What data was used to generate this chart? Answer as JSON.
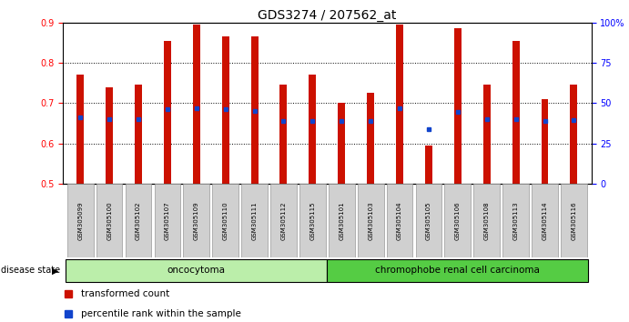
{
  "title": "GDS3274 / 207562_at",
  "samples": [
    "GSM305099",
    "GSM305100",
    "GSM305102",
    "GSM305107",
    "GSM305109",
    "GSM305110",
    "GSM305111",
    "GSM305112",
    "GSM305115",
    "GSM305101",
    "GSM305103",
    "GSM305104",
    "GSM305105",
    "GSM305106",
    "GSM305108",
    "GSM305113",
    "GSM305114",
    "GSM305116"
  ],
  "bar_heights": [
    0.77,
    0.74,
    0.745,
    0.855,
    0.895,
    0.865,
    0.865,
    0.745,
    0.77,
    0.7,
    0.725,
    0.895,
    0.595,
    0.885,
    0.745,
    0.855,
    0.71,
    0.745
  ],
  "blue_values": [
    0.665,
    0.66,
    0.66,
    0.685,
    0.688,
    0.685,
    0.68,
    0.655,
    0.655,
    0.655,
    0.655,
    0.688,
    0.635,
    0.678,
    0.66,
    0.66,
    0.655,
    0.658
  ],
  "bar_color": "#cc1100",
  "blue_color": "#1144cc",
  "ylim_left": [
    0.5,
    0.9
  ],
  "ylim_right": [
    0,
    100
  ],
  "yticks_left": [
    0.5,
    0.6,
    0.7,
    0.8,
    0.9
  ],
  "yticks_right": [
    0,
    25,
    50,
    75,
    100
  ],
  "ytick_labels_right": [
    "0",
    "25",
    "50",
    "75",
    "100%"
  ],
  "group1_label": "oncocytoma",
  "group2_label": "chromophobe renal cell carcinoma",
  "group1_count": 9,
  "group2_count": 9,
  "disease_state_label": "disease state",
  "legend_red": "transformed count",
  "legend_blue": "percentile rank within the sample",
  "group1_color": "#bbeeaa",
  "group2_color": "#55cc44",
  "bar_width": 0.25,
  "background_color": "#ffffff",
  "tick_label_fontsize": 7,
  "title_fontsize": 10
}
